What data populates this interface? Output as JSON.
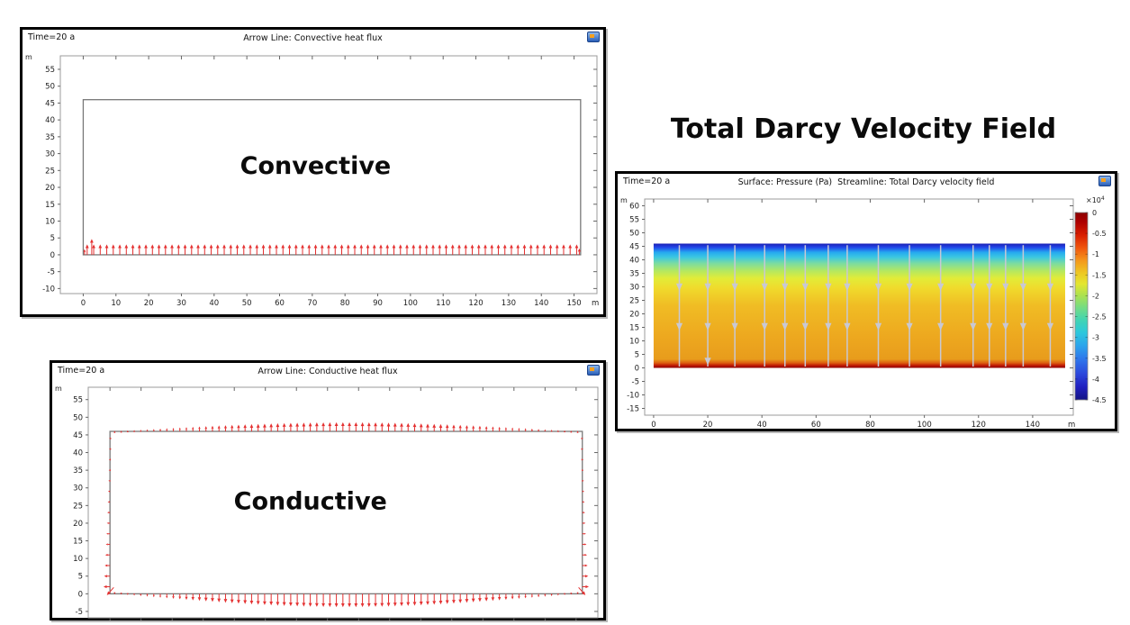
{
  "heading": {
    "text": "Total Darcy Velocity Field"
  },
  "chart_data": [
    {
      "id": "convective-heat-flux",
      "type": "scatter",
      "window_time_label": "Time=20 a",
      "title": "Arrow Line: Convective heat flux",
      "overlay_label": "Convective",
      "overlay_label_pos": {
        "x": 71,
        "y": 24
      },
      "x_unit": "m",
      "y_unit": "m",
      "xlim": [
        -7,
        157
      ],
      "ylim": [
        -11.5,
        59
      ],
      "x_ticks": [
        0,
        10,
        20,
        30,
        40,
        50,
        60,
        70,
        80,
        90,
        100,
        110,
        120,
        130,
        140,
        150
      ],
      "y_ticks": [
        55,
        50,
        45,
        40,
        35,
        30,
        25,
        20,
        15,
        10,
        5,
        0,
        -5,
        -10
      ],
      "domain_rect": {
        "x0": 0,
        "y0": 0,
        "x1": 152,
        "y1": 46
      },
      "arrow_color": "#e43030",
      "arrow_sets": [
        {
          "name": "bottom-boundary-convective-flux",
          "dir": "up",
          "base": 0,
          "span": [
            1.2,
            150.8
          ],
          "count": 76,
          "profile": "uniform",
          "length": 3.1
        }
      ],
      "extra_arrows": [
        {
          "x": 0.4,
          "y": 0,
          "dx": 0,
          "dy": 1.7
        },
        {
          "x": 2.6,
          "y": 0,
          "dx": 0,
          "dy": 4.7
        },
        {
          "x": 151.6,
          "y": 0,
          "dx": 0,
          "dy": 1.9
        }
      ]
    },
    {
      "id": "conductive-heat-flux",
      "type": "scatter",
      "window_time_label": "Time=20 a",
      "title": "Arrow Line: Conductive heat flux",
      "overlay_label": "Conductive",
      "overlay_label_pos": {
        "x": 64.5,
        "y": 24
      },
      "x_unit": "m",
      "y_unit": "m",
      "xlim": [
        -7,
        157
      ],
      "ylim": [
        -6.8,
        58.5
      ],
      "x_ticks": [
        0,
        10,
        20,
        30,
        40,
        50,
        60,
        70,
        80,
        90,
        100,
        110,
        120,
        130,
        140,
        150
      ],
      "y_ticks": [
        55,
        50,
        45,
        40,
        35,
        30,
        25,
        20,
        15,
        10,
        5,
        0,
        -5
      ],
      "domain_rect": {
        "x0": 0,
        "y0": 0,
        "x1": 152,
        "y1": 46
      },
      "arrow_color": "#e43030",
      "arrow_sets": [
        {
          "name": "top-boundary-conductive-flux",
          "dir": "up",
          "base": 46,
          "span": [
            1.5,
            150.5
          ],
          "count": 72,
          "profile": "bell",
          "min": 0.15,
          "max": 2.6
        },
        {
          "name": "bottom-boundary-conductive-flux",
          "dir": "down",
          "base": 0,
          "span": [
            1.5,
            150.5
          ],
          "count": 72,
          "profile": "bell",
          "min": 0.15,
          "max": 3.8
        },
        {
          "name": "left-boundary-conductive-flux",
          "dir": "left",
          "base": 0,
          "span": [
            2,
            44
          ],
          "count": 15,
          "profile": "taper",
          "min": 0.3,
          "max": 2.1
        },
        {
          "name": "right-boundary-conductive-flux",
          "dir": "right",
          "base": 152,
          "span": [
            2,
            44
          ],
          "count": 15,
          "profile": "taper",
          "min": 0.3,
          "max": 2.1
        }
      ],
      "extra_arrows": [
        {
          "x": 1.2,
          "y": 1.8,
          "dx": -2.2,
          "dy": -2.2
        },
        {
          "x": 150.8,
          "y": 1.8,
          "dx": 2.2,
          "dy": -2.2
        }
      ]
    },
    {
      "id": "darcy-velocity-field",
      "type": "heatmap",
      "window_time_label": "Time=20 a",
      "title": "Surface: Pressure (Pa)  Streamline: Total Darcy velocity field",
      "x_unit": "m",
      "y_unit": "m",
      "xlim": [
        -3.3,
        155
      ],
      "ylim": [
        -17.5,
        62.5
      ],
      "x_ticks": [
        0,
        20,
        40,
        60,
        80,
        100,
        120,
        140
      ],
      "y_ticks": [
        60,
        55,
        50,
        45,
        40,
        35,
        30,
        25,
        20,
        15,
        10,
        5,
        0,
        -5,
        -10,
        -15
      ],
      "surface": {
        "quantity": "Pressure (Pa)",
        "x0": 0,
        "y0": 0,
        "x1": 152,
        "y1": 46,
        "value_range": [
          -45000,
          0
        ],
        "gradient": [
          [
            0,
            "#1c20b4"
          ],
          [
            0.03,
            "#2146e8"
          ],
          [
            0.07,
            "#25a8f0"
          ],
          [
            0.11,
            "#3cc8e0"
          ],
          [
            0.16,
            "#7cdca0"
          ],
          [
            0.22,
            "#b4e860"
          ],
          [
            0.28,
            "#e2ec38"
          ],
          [
            0.36,
            "#f0da2c"
          ],
          [
            0.5,
            "#f0bc24"
          ],
          [
            0.75,
            "#eda81f"
          ],
          [
            0.93,
            "#e89c1c"
          ],
          [
            0.96,
            "#dd5f10"
          ],
          [
            0.98,
            "#c01c04"
          ],
          [
            1,
            "#8c0000"
          ]
        ]
      },
      "streamlines": {
        "quantity": "Total Darcy velocity field",
        "direction": "down",
        "color": "#c8c8d4",
        "x_positions": [
          9.5,
          20,
          30,
          41,
          48.5,
          56,
          64.5,
          71.5,
          83,
          94.5,
          106,
          118,
          124,
          130,
          136.5,
          146.5
        ],
        "y_top": 45.4,
        "y_bottom": 0.5,
        "arrowhead_y": [
          30,
          15.3
        ],
        "extra_arrowheads": [
          {
            "x": 20,
            "y": 2.5
          }
        ]
      },
      "colorbar": {
        "multiplier_base": "×10",
        "multiplier_exp": "4",
        "tick_labels": [
          "0",
          "-0.5",
          "-1",
          "-1.5",
          "-2",
          "-2.5",
          "-3",
          "-3.5",
          "-4",
          "-4.5"
        ],
        "gradient": [
          [
            0,
            "#8c0000"
          ],
          [
            0.05,
            "#ad0000"
          ],
          [
            0.12,
            "#d81e00"
          ],
          [
            0.19,
            "#f0570e"
          ],
          [
            0.26,
            "#f49a1c"
          ],
          [
            0.32,
            "#eec623"
          ],
          [
            0.38,
            "#e4e630"
          ],
          [
            0.44,
            "#aee24e"
          ],
          [
            0.51,
            "#72dc86"
          ],
          [
            0.575,
            "#41d4b4"
          ],
          [
            0.64,
            "#2cc8dc"
          ],
          [
            0.71,
            "#2ba4ec"
          ],
          [
            0.78,
            "#2e78ec"
          ],
          [
            0.86,
            "#2c48dc"
          ],
          [
            0.93,
            "#2020c0"
          ],
          [
            1,
            "#131384"
          ]
        ]
      }
    }
  ]
}
